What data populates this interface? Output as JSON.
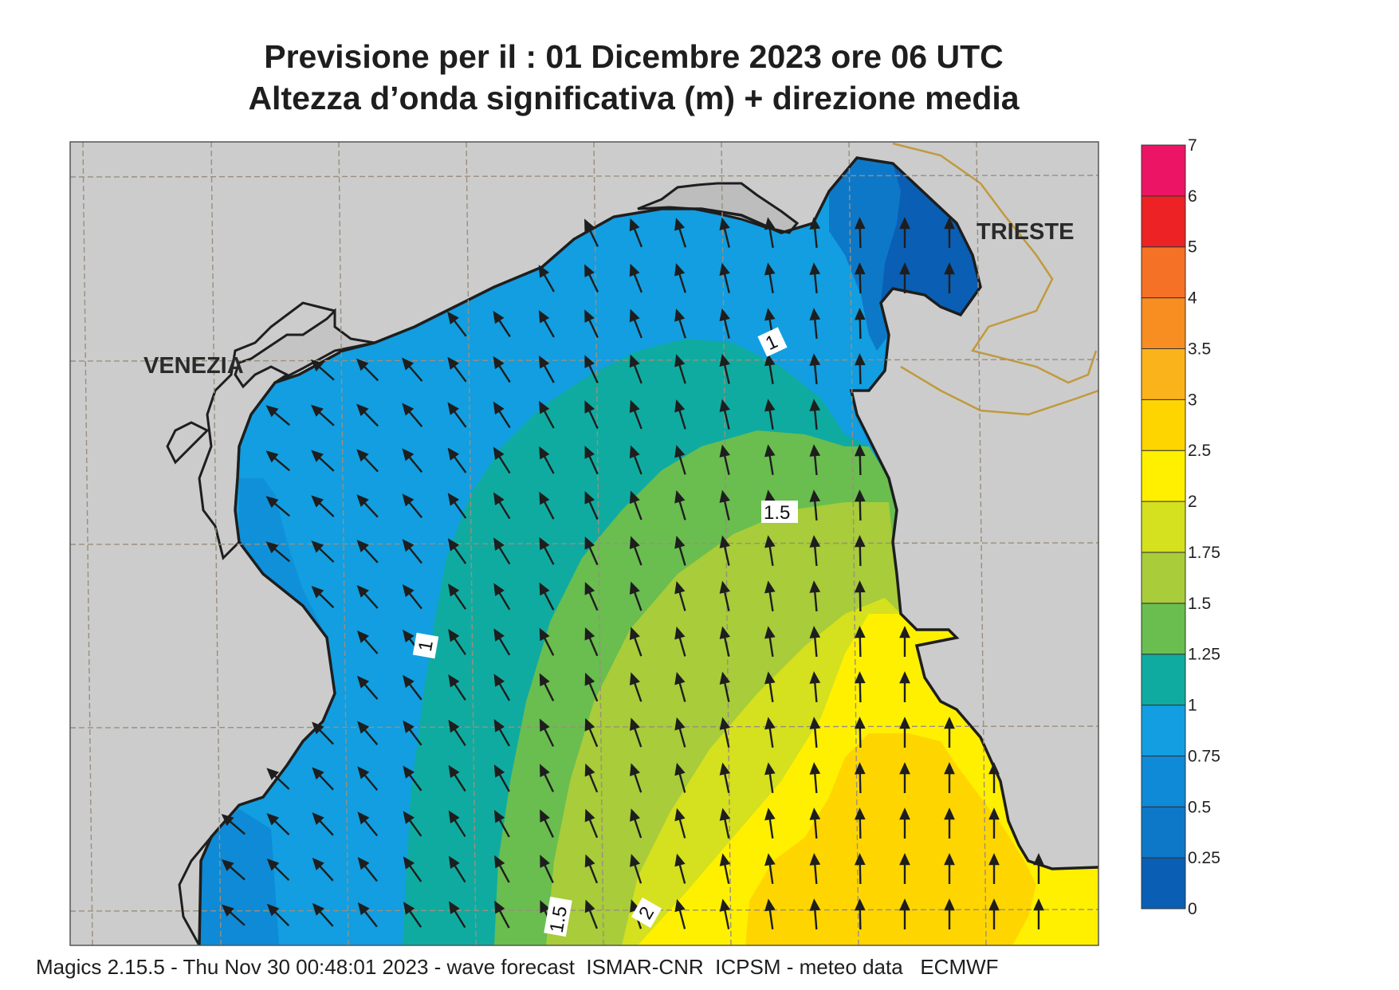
{
  "header": {
    "line1": "Previsione per il  :  01 Dicembre  2023   ore 06 UTC",
    "line2": "Altezza d’onda significativa (m) + direzione media"
  },
  "cities": {
    "venezia": "VENEZIA",
    "trieste": "TRIESTE"
  },
  "contour_labels": {
    "c1_top": "1",
    "c15_top": "1.5",
    "c1_left": "1",
    "c15_bottom": "1.5",
    "c2_bottom": "2"
  },
  "legend": {
    "levels": [
      "0",
      "0.25",
      "0.5",
      "0.75",
      "1",
      "1.25",
      "1.5",
      "1.75",
      "2",
      "2.5",
      "3",
      "3.5",
      "4",
      "5",
      "6",
      "7"
    ],
    "colors": [
      "#0a5fb4",
      "#0e78c8",
      "#0f8ad6",
      "#129ee0",
      "#10aba0",
      "#6abd4f",
      "#a8cc3a",
      "#d5e01e",
      "#fff000",
      "#ffd500",
      "#fbb31c",
      "#f88d22",
      "#f57125",
      "#ec2225",
      "#ec1565"
    ]
  },
  "colors": {
    "land": "#cccccc",
    "grid": "#9a8f7e",
    "border": "#c09a3c"
  },
  "footer": "Magics 2.15.5 - Thu Nov 30 00:48:01 2023 - wave forecast  ISMAR-CNR  ICPSM - meteo data   ECMWF"
}
